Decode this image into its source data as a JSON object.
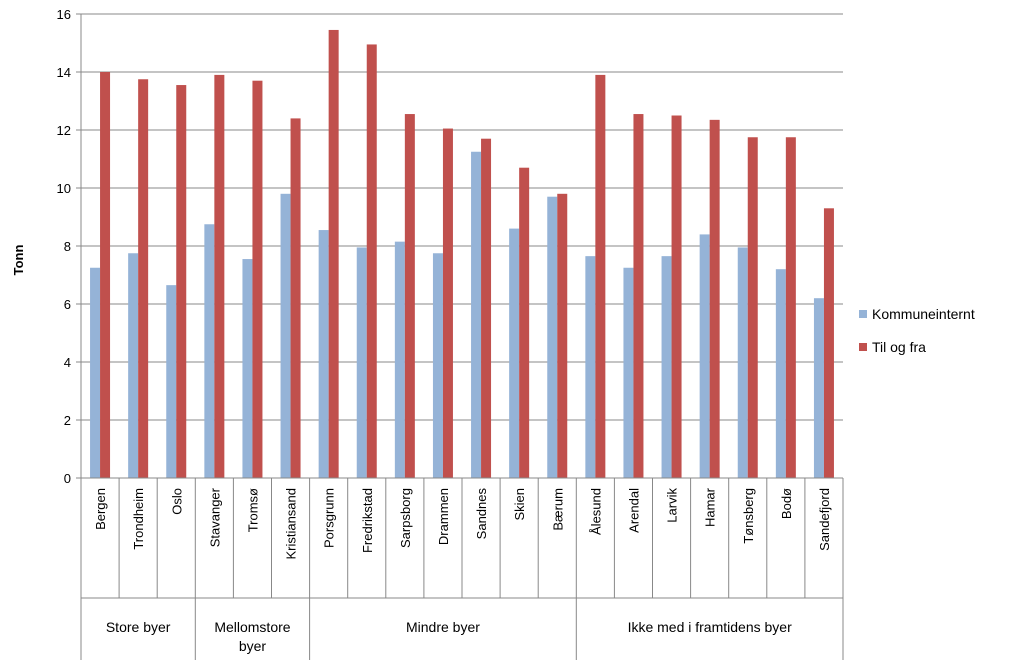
{
  "chart_data": {
    "type": "bar",
    "ylabel": "Tonn",
    "ylim": [
      0,
      16
    ],
    "yticks": [
      0,
      2,
      4,
      6,
      8,
      10,
      12,
      14,
      16
    ],
    "grid": true,
    "legend_position": "right",
    "categories": [
      "Bergen",
      "Trondheim",
      "Oslo",
      "Stavanger",
      "Tromsø",
      "Kristiansand",
      "Porsgrunn",
      "Fredrikstad",
      "Sarpsborg",
      "Drammen",
      "Sandnes",
      "Skien",
      "Bærum",
      "Ålesund",
      "Arendal",
      "Larvik",
      "Hamar",
      "Tønsberg",
      "Bodø",
      "Sandefjord"
    ],
    "groups": [
      {
        "label": "Store byer",
        "count": 3
      },
      {
        "label": "Mellomstore byer",
        "count": 3
      },
      {
        "label": "Mindre byer",
        "count": 7
      },
      {
        "label": "Ikke med i framtidens byer",
        "count": 7
      }
    ],
    "series": [
      {
        "name": "Kommuneinternt",
        "color": "#95b3d7",
        "values": [
          7.25,
          7.75,
          6.65,
          8.75,
          7.55,
          9.8,
          8.55,
          7.95,
          8.15,
          7.75,
          11.25,
          8.6,
          9.7,
          7.65,
          7.25,
          7.65,
          8.4,
          7.95,
          7.2,
          6.2
        ]
      },
      {
        "name": "Til og fra",
        "color": "#c0504d",
        "values": [
          14.0,
          13.75,
          13.55,
          13.9,
          13.7,
          12.4,
          15.45,
          14.95,
          12.55,
          12.05,
          11.7,
          10.7,
          9.8,
          13.9,
          12.55,
          12.5,
          12.35,
          11.75,
          11.75,
          9.3
        ]
      }
    ]
  }
}
